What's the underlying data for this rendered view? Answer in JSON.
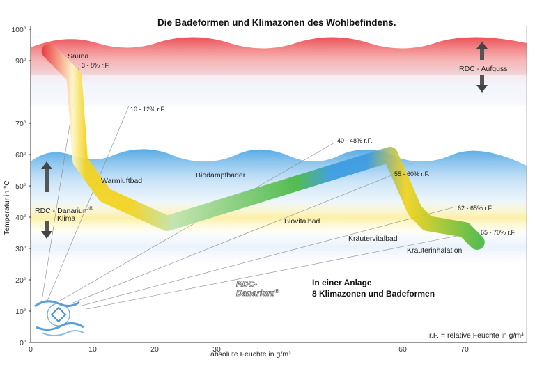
{
  "chart_data": {
    "type": "line",
    "title": "Die Badeformen und Klimazonen des Wohlbefindens.",
    "xlabel": "absolute Feuchte in g/m³",
    "ylabel": "Temperatur in °C",
    "xlim": [
      0,
      80
    ],
    "ylim": [
      0,
      105
    ],
    "x_ticks": [
      0,
      10,
      20,
      30,
      60,
      70
    ],
    "x_tick_labels": [
      "0",
      "10",
      "20",
      "30",
      "60",
      "70"
    ],
    "y_ticks": [
      0,
      10,
      20,
      30,
      40,
      50,
      60,
      70,
      90,
      100
    ],
    "y_tick_labels": [
      "0°",
      "10°",
      "20°",
      "30°",
      "40°",
      "50°",
      "60°",
      "70°",
      "90°",
      "100°"
    ],
    "series": [
      {
        "name": "Badeformen",
        "x": [
          3,
          7,
          8,
          12,
          22,
          58,
          62,
          64,
          70,
          72
        ],
        "y": [
          93,
          85,
          58,
          47,
          38,
          60,
          42,
          38,
          36,
          32
        ]
      }
    ],
    "zones": [
      {
        "name": "RDC - Aufguss",
        "temp_range": [
          85,
          97
        ]
      },
      {
        "name": "RDC - Danarium Klima",
        "temp_range": [
          27,
          60
        ]
      }
    ],
    "bath_labels": [
      "Sauna",
      "Warmluftbad",
      "Biodampfbäder",
      "Biovitalbad",
      "Kräutervitalbad",
      "Kräuterinhalation"
    ],
    "humidity_labels": [
      "3 - 8% r.F.",
      "10 - 12% r.F.",
      "40 - 48% r.F.",
      "55 - 60% r.F.",
      "62 - 65% r.F.",
      "65 - 70% r.F."
    ],
    "zone_labels": {
      "aufguss": "RDC - Aufguss",
      "danarium_line1": "RDC - Danarium",
      "danarium_reg": "®",
      "danarium_line2": "Klima"
    },
    "brand": {
      "logo_line1": "RDC-",
      "logo_line2": "Danarium",
      "logo_reg": "®",
      "line1": "In einer Anlage",
      "line2": "8 Klimazonen und Badeformen"
    },
    "footnote": "r.F. = relative Feuchte in g/m³"
  },
  "colors": {
    "sauna_red": "#e8323a",
    "steam_blue": "#3a9be0",
    "warm_yellow": "#f3d21c",
    "herb_green": "#49b842",
    "axis": "#333333"
  }
}
